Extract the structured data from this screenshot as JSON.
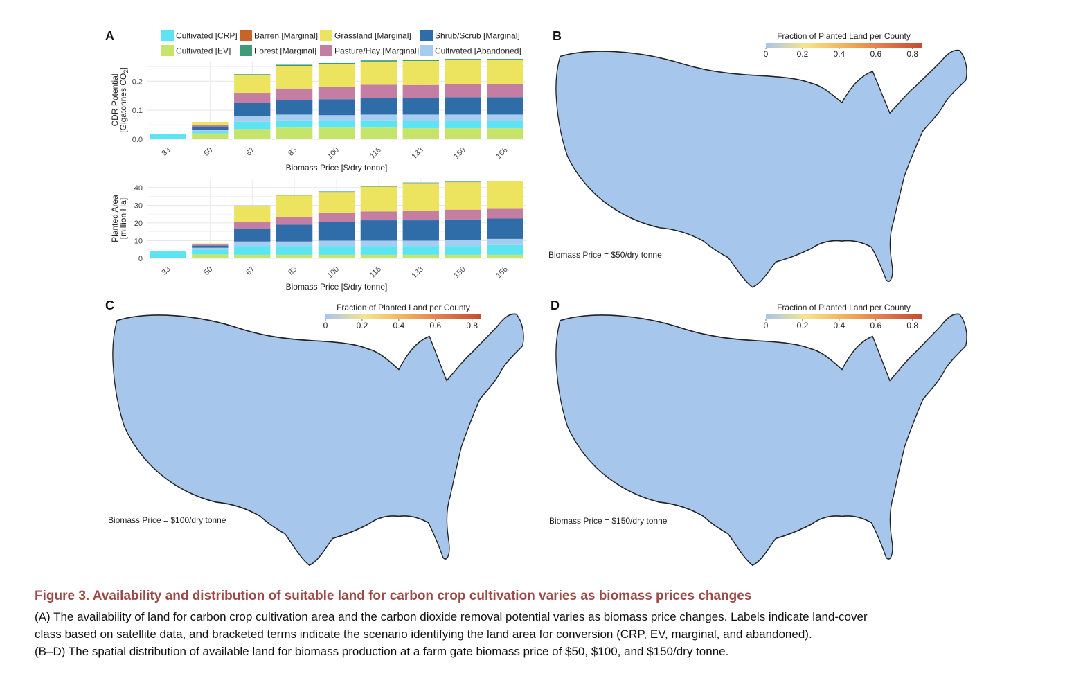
{
  "panels": {
    "A": "A",
    "B": "B",
    "C": "C",
    "D": "D"
  },
  "legend": {
    "items": [
      {
        "label": "Cultivated [CRP]",
        "color": "#5de4f2"
      },
      {
        "label": "Barren [Marginal]",
        "color": "#c8632a"
      },
      {
        "label": "Grassland [Marginal]",
        "color": "#ece35e"
      },
      {
        "label": "Shrub/Scrub [Marginal]",
        "color": "#2f6da8"
      },
      {
        "label": "Cultivated [EV]",
        "color": "#c6e46a"
      },
      {
        "label": "Forest [Marginal]",
        "color": "#3f9a78"
      },
      {
        "label": "Pasture/Hay [Marginal]",
        "color": "#c47ea4"
      },
      {
        "label": "Cultivated [Abandoned]",
        "color": "#a6cdef"
      }
    ]
  },
  "chart_data": [
    {
      "type": "bar",
      "stacked": true,
      "panel": "A (top)",
      "xlabel": "Biomass Price [$/dry tonne]",
      "ylabel_line1": "CDR Potential",
      "ylabel_line2": "[Gigatonnes CO",
      "ylabel_sub": "2",
      "ylabel_end": "]",
      "ylim": [
        0,
        0.27
      ],
      "yticks": [
        "0.0",
        "0.1",
        "0.2"
      ],
      "ytick_values": [
        0,
        0.1,
        0.2
      ],
      "categories": [
        "33",
        "50",
        "67",
        "83",
        "100",
        "116",
        "133",
        "150",
        "166"
      ],
      "series": [
        {
          "name": "Cultivated [EV]",
          "values": [
            0,
            0.02,
            0.035,
            0.04,
            0.04,
            0.04,
            0.038,
            0.038,
            0.038
          ]
        },
        {
          "name": "Cultivated [CRP]",
          "values": [
            0.018,
            0.006,
            0.025,
            0.025,
            0.023,
            0.025,
            0.025,
            0.025,
            0.025
          ]
        },
        {
          "name": "Cultivated [Abandoned]",
          "values": [
            0,
            0.006,
            0.02,
            0.02,
            0.02,
            0.02,
            0.022,
            0.022,
            0.022
          ]
        },
        {
          "name": "Shrub/Scrub [Marginal]",
          "values": [
            0,
            0.012,
            0.045,
            0.05,
            0.055,
            0.058,
            0.057,
            0.06,
            0.06
          ]
        },
        {
          "name": "Pasture/Hay [Marginal]",
          "values": [
            0,
            0.004,
            0.035,
            0.04,
            0.043,
            0.045,
            0.045,
            0.045,
            0.045
          ]
        },
        {
          "name": "Grassland [Marginal]",
          "values": [
            0,
            0.012,
            0.06,
            0.078,
            0.078,
            0.08,
            0.083,
            0.083,
            0.083
          ]
        },
        {
          "name": "Forest [Marginal]",
          "values": [
            0,
            0,
            0.004,
            0.004,
            0.004,
            0.004,
            0.004,
            0.004,
            0.004
          ]
        },
        {
          "name": "Barren [Marginal]",
          "values": [
            0,
            0,
            0,
            0,
            0,
            0,
            0,
            0,
            0
          ]
        }
      ]
    },
    {
      "type": "bar",
      "stacked": true,
      "panel": "A (bottom)",
      "xlabel": "Biomass Price [$/dry tonne]",
      "ylabel_line1": "Planted Area",
      "ylabel_line2": "[million Ha]",
      "ylim": [
        0,
        45
      ],
      "yticks": [
        "0",
        "10",
        "20",
        "30",
        "40"
      ],
      "ytick_values": [
        0,
        10,
        20,
        30,
        40
      ],
      "categories": [
        "33",
        "50",
        "67",
        "83",
        "100",
        "116",
        "133",
        "150",
        "166"
      ],
      "series": [
        {
          "name": "Cultivated [EV]",
          "values": [
            0,
            2.2,
            2,
            2,
            2,
            2,
            2,
            2,
            2
          ]
        },
        {
          "name": "Cultivated [CRP]",
          "values": [
            4,
            2.8,
            5,
            5,
            5,
            5,
            5,
            5,
            5.5
          ]
        },
        {
          "name": "Cultivated [Abandoned]",
          "values": [
            0,
            1,
            2.5,
            2.5,
            3,
            3,
            3,
            3.5,
            3.5
          ]
        },
        {
          "name": "Shrub/Scrub [Marginal]",
          "values": [
            0,
            1.2,
            7,
            9.5,
            10.5,
            11.5,
            11.5,
            11.5,
            11.5
          ]
        },
        {
          "name": "Pasture/Hay [Marginal]",
          "values": [
            0,
            0.6,
            4,
            4.5,
            5,
            5,
            5.5,
            5.5,
            5.5
          ]
        },
        {
          "name": "Grassland [Marginal]",
          "values": [
            0,
            0.6,
            9,
            12,
            12,
            14,
            15.5,
            15.5,
            15.5
          ]
        },
        {
          "name": "Forest [Marginal]",
          "values": [
            0,
            0,
            0.3,
            0.3,
            0.3,
            0.3,
            0.3,
            0.3,
            0.3
          ]
        },
        {
          "name": "Barren [Marginal]",
          "values": [
            0,
            0,
            0,
            0,
            0,
            0,
            0,
            0,
            0
          ]
        }
      ]
    }
  ],
  "maps": [
    {
      "panel": "B",
      "colorbar_title": "Fraction of Planted Land per County",
      "colorbar_ticks": [
        "0",
        "0.2",
        "0.4",
        "0.6",
        "0.8"
      ],
      "colorbar_values": [
        0,
        0.2,
        0.4,
        0.6,
        0.8
      ],
      "colorbar_range": [
        0,
        0.85
      ],
      "colorbar_colors": [
        "#a6c5ec",
        "#f6e58e",
        "#f1b25e",
        "#e07b4a",
        "#c54c33"
      ],
      "note": "Biomass Price = $50/dry tonne"
    },
    {
      "panel": "C",
      "colorbar_title": "Fraction of Planted Land per County",
      "colorbar_ticks": [
        "0",
        "0.2",
        "0.4",
        "0.6",
        "0.8"
      ],
      "colorbar_values": [
        0,
        0.2,
        0.4,
        0.6,
        0.8
      ],
      "colorbar_range": [
        0,
        0.85
      ],
      "colorbar_colors": [
        "#a6c5ec",
        "#f6e58e",
        "#f1b25e",
        "#e07b4a",
        "#c54c33"
      ],
      "note": "Biomass Price = $100/dry tonne"
    },
    {
      "panel": "D",
      "colorbar_title": "Fraction of Planted Land per County",
      "colorbar_ticks": [
        "0",
        "0.2",
        "0.4",
        "0.6",
        "0.8"
      ],
      "colorbar_values": [
        0,
        0.2,
        0.4,
        0.6,
        0.8
      ],
      "colorbar_range": [
        0,
        0.85
      ],
      "colorbar_colors": [
        "#a6c5ec",
        "#f6e58e",
        "#f1b25e",
        "#e07b4a",
        "#c54c33"
      ],
      "note": "Biomass Price = $150/dry tonne"
    }
  ],
  "map_style": {
    "land_color": "#a7c6ec",
    "border_color": "#7d8a9c",
    "hot_light": "#f6e58e",
    "hot_mid": "#f2c26a",
    "hot_strong": "#e8954f",
    "hot_peak": "#cf5f3a"
  },
  "caption": {
    "title": "Figure 3.  Availability and distribution of suitable land for carbon crop cultivation varies as biomass prices changes",
    "line1": "(A) The availability of land for carbon crop cultivation area and the carbon dioxide removal potential varies as biomass price changes. Labels indicate land-cover",
    "line2": "class based on satellite data, and bracketed terms indicate the scenario identifying the land area for conversion (CRP, EV, marginal, and abandoned).",
    "line3": "(B–D) The spatial distribution of available land for biomass production at a farm gate biomass price of $50, $100, and $150/dry tonne."
  }
}
